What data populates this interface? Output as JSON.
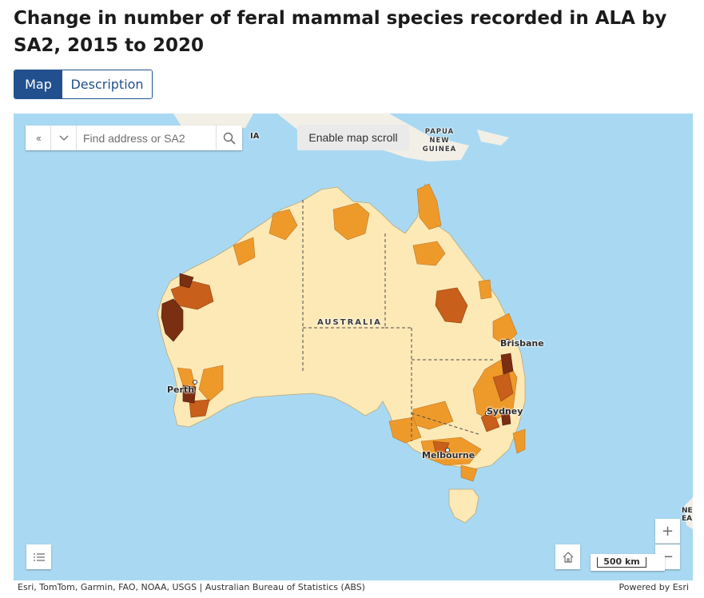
{
  "page": {
    "title": "Change in number of feral mammal species recorded in ALA by SA2, 2015 to 2020"
  },
  "tabs": [
    {
      "label": "Map",
      "active": true
    },
    {
      "label": "Description",
      "active": false
    }
  ],
  "map": {
    "search": {
      "placeholder": "Find address or SA2"
    },
    "scroll_button": "Enable map scroll",
    "scale_label": "500 km",
    "labels": {
      "country": "AUSTRALIA",
      "png": "PAPUA NEW GUINEA",
      "ia": "IA",
      "nz": "NE\nEAL",
      "perth": "Perth",
      "brisbane": "Brisbane",
      "sydney": "Sydney",
      "melbourne": "Melbourne"
    },
    "colors": {
      "ocean": "#a9d9f2",
      "land_outside": "#f2efe6",
      "class_1": "#fde9b6",
      "class_2": "#ee9a2b",
      "class_3": "#c85f1a",
      "class_4": "#7a2e12"
    },
    "icons": [
      "collapse-icon",
      "chevron-down-icon",
      "search-icon",
      "zoom-in-icon",
      "zoom-out-icon",
      "home-icon",
      "layer-list-icon"
    ]
  },
  "attribution": {
    "left": "Esri, TomTom, Garmin, FAO, NOAA, USGS | Australian Bureau of Statistics (ABS)",
    "right": "Powered by Esri"
  }
}
